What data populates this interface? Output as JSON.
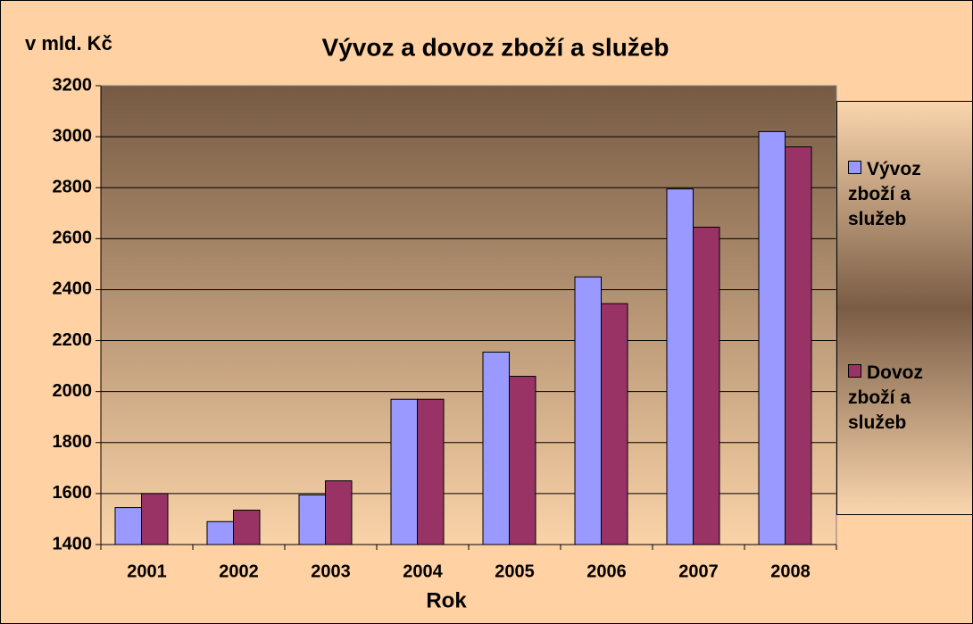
{
  "chart_data": {
    "type": "bar",
    "title": "Vývoz a dovoz zboží a služeb",
    "y_label": "v mld. Kč",
    "x_label": "Rok",
    "categories": [
      "2001",
      "2002",
      "2003",
      "2004",
      "2005",
      "2006",
      "2007",
      "2008"
    ],
    "series": [
      {
        "name": "Vývoz zboží a služeb",
        "color": "#9999ff",
        "values": [
          1545,
          1490,
          1595,
          1970,
          2155,
          2450,
          2795,
          3020
        ]
      },
      {
        "name": "Dovoz zboží a služeb",
        "color": "#993366",
        "values": [
          1600,
          1535,
          1650,
          1970,
          2060,
          2345,
          2645,
          2960
        ]
      }
    ],
    "ylim": [
      1400,
      3200
    ],
    "yticks": [
      1400,
      1600,
      1800,
      2000,
      2200,
      2400,
      2600,
      2800,
      3000,
      3200
    ],
    "grid": true,
    "legend": "right"
  }
}
